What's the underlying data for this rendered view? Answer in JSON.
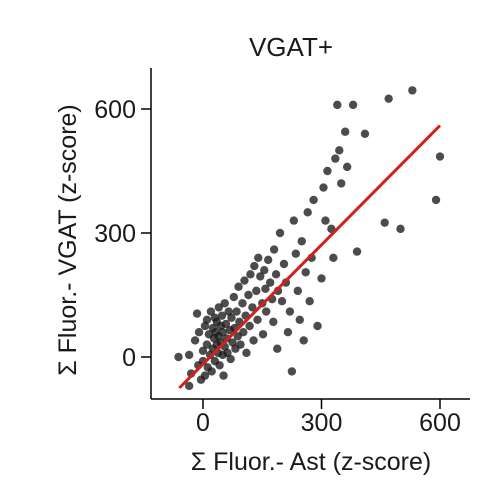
{
  "chart_data": {
    "type": "scatter",
    "title": "VGAT+",
    "xlabel": "Σ  Fluor.- Ast (z-score)",
    "ylabel": "Σ  Fluor.- VGAT (z-score)",
    "xlim": [
      -70,
      700
    ],
    "ylim": [
      -100,
      700
    ],
    "xticks": [
      0,
      300,
      600
    ],
    "yticks": [
      0,
      300,
      600
    ],
    "xtick_labels": [
      "0",
      "300",
      "600"
    ],
    "ytick_labels": [
      "0",
      "300",
      "600"
    ],
    "grid": false,
    "legend": "none",
    "colors": {
      "points": "#1a1a1a",
      "fit_line": "#d41f1f"
    },
    "fit_line": {
      "x": [
        -60,
        600
      ],
      "y": [
        -75,
        560
      ]
    },
    "points": [
      {
        "x": -62,
        "y": 0
      },
      {
        "x": -35,
        "y": -70
      },
      {
        "x": -35,
        "y": 5
      },
      {
        "x": -30,
        "y": -40
      },
      {
        "x": -20,
        "y": 40
      },
      {
        "x": -15,
        "y": 105
      },
      {
        "x": -12,
        "y": -20
      },
      {
        "x": -10,
        "y": 60
      },
      {
        "x": -5,
        "y": -55
      },
      {
        "x": 0,
        "y": 15
      },
      {
        "x": 0,
        "y": -10
      },
      {
        "x": 5,
        "y": 75
      },
      {
        "x": 5,
        "y": -45
      },
      {
        "x": 10,
        "y": 30
      },
      {
        "x": 10,
        "y": 90
      },
      {
        "x": 12,
        "y": -25
      },
      {
        "x": 15,
        "y": 55
      },
      {
        "x": 18,
        "y": 5
      },
      {
        "x": 20,
        "y": 110
      },
      {
        "x": 22,
        "y": -35
      },
      {
        "x": 25,
        "y": 70
      },
      {
        "x": 25,
        "y": 20
      },
      {
        "x": 28,
        "y": 45
      },
      {
        "x": 30,
        "y": -10
      },
      {
        "x": 30,
        "y": 95
      },
      {
        "x": 32,
        "y": 60
      },
      {
        "x": 35,
        "y": 30
      },
      {
        "x": 35,
        "y": 85
      },
      {
        "x": 38,
        "y": 10
      },
      {
        "x": 40,
        "y": 50
      },
      {
        "x": 40,
        "y": 120
      },
      {
        "x": 42,
        "y": -20
      },
      {
        "x": 45,
        "y": 75
      },
      {
        "x": 45,
        "y": 35
      },
      {
        "x": 48,
        "y": 100
      },
      {
        "x": 50,
        "y": 5
      },
      {
        "x": 50,
        "y": 60
      },
      {
        "x": 52,
        "y": -45
      },
      {
        "x": 55,
        "y": 130
      },
      {
        "x": 55,
        "y": 25
      },
      {
        "x": 58,
        "y": 80
      },
      {
        "x": 60,
        "y": 45
      },
      {
        "x": 62,
        "y": 10
      },
      {
        "x": 65,
        "y": 110
      },
      {
        "x": 68,
        "y": 65
      },
      {
        "x": 70,
        "y": -5
      },
      {
        "x": 72,
        "y": 95
      },
      {
        "x": 75,
        "y": 35
      },
      {
        "x": 78,
        "y": 145
      },
      {
        "x": 80,
        "y": 70
      },
      {
        "x": 82,
        "y": 20
      },
      {
        "x": 85,
        "y": 110
      },
      {
        "x": 88,
        "y": 50
      },
      {
        "x": 90,
        "y": 170
      },
      {
        "x": 92,
        "y": 85
      },
      {
        "x": 95,
        "y": 30
      },
      {
        "x": 100,
        "y": 130
      },
      {
        "x": 102,
        "y": 60
      },
      {
        "x": 105,
        "y": 185
      },
      {
        "x": 108,
        "y": 100
      },
      {
        "x": 110,
        "y": 10
      },
      {
        "x": 115,
        "y": 150
      },
      {
        "x": 118,
        "y": 75
      },
      {
        "x": 120,
        "y": 200
      },
      {
        "x": 125,
        "y": 120
      },
      {
        "x": 128,
        "y": 40
      },
      {
        "x": 130,
        "y": 220
      },
      {
        "x": 135,
        "y": 160
      },
      {
        "x": 138,
        "y": 90
      },
      {
        "x": 140,
        "y": 240
      },
      {
        "x": 145,
        "y": 195
      },
      {
        "x": 150,
        "y": 130
      },
      {
        "x": 152,
        "y": 55
      },
      {
        "x": 155,
        "y": 210
      },
      {
        "x": 158,
        "y": 165
      },
      {
        "x": 160,
        "y": 110
      },
      {
        "x": 165,
        "y": 235
      },
      {
        "x": 170,
        "y": 180
      },
      {
        "x": 175,
        "y": 140
      },
      {
        "x": 178,
        "y": 85
      },
      {
        "x": 180,
        "y": 260
      },
      {
        "x": 185,
        "y": 200
      },
      {
        "x": 188,
        "y": 20
      },
      {
        "x": 190,
        "y": 160
      },
      {
        "x": 195,
        "y": 300
      },
      {
        "x": 200,
        "y": 135
      },
      {
        "x": 205,
        "y": 225
      },
      {
        "x": 210,
        "y": 180
      },
      {
        "x": 215,
        "y": 60
      },
      {
        "x": 220,
        "y": 110
      },
      {
        "x": 225,
        "y": -35
      },
      {
        "x": 230,
        "y": 330
      },
      {
        "x": 235,
        "y": 250
      },
      {
        "x": 240,
        "y": 160
      },
      {
        "x": 245,
        "y": 90
      },
      {
        "x": 250,
        "y": 280
      },
      {
        "x": 255,
        "y": 40
      },
      {
        "x": 260,
        "y": 205
      },
      {
        "x": 265,
        "y": 350
      },
      {
        "x": 270,
        "y": 135
      },
      {
        "x": 275,
        "y": 240
      },
      {
        "x": 280,
        "y": 380
      },
      {
        "x": 290,
        "y": 75
      },
      {
        "x": 300,
        "y": 190
      },
      {
        "x": 305,
        "y": 410
      },
      {
        "x": 310,
        "y": 330
      },
      {
        "x": 315,
        "y": 450
      },
      {
        "x": 325,
        "y": 310
      },
      {
        "x": 330,
        "y": 240
      },
      {
        "x": 335,
        "y": 480
      },
      {
        "x": 340,
        "y": 610
      },
      {
        "x": 345,
        "y": 500
      },
      {
        "x": 350,
        "y": 420
      },
      {
        "x": 360,
        "y": 545
      },
      {
        "x": 365,
        "y": 460
      },
      {
        "x": 380,
        "y": 610
      },
      {
        "x": 390,
        "y": 255
      },
      {
        "x": 410,
        "y": 540
      },
      {
        "x": 460,
        "y": 325
      },
      {
        "x": 470,
        "y": 625
      },
      {
        "x": 500,
        "y": 310
      },
      {
        "x": 530,
        "y": 645
      },
      {
        "x": 590,
        "y": 380
      },
      {
        "x": 600,
        "y": 485
      }
    ]
  }
}
